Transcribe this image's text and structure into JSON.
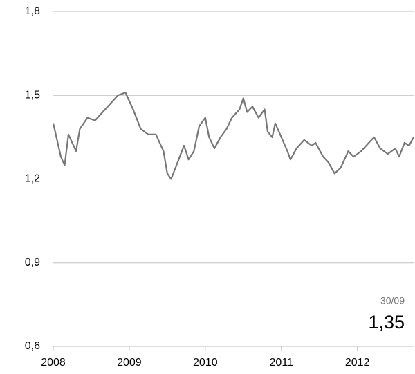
{
  "chart_data": {
    "type": "line",
    "x": [
      2008.0,
      2008.1,
      2008.15,
      2008.2,
      2008.3,
      2008.35,
      2008.45,
      2008.55,
      2008.65,
      2008.75,
      2008.85,
      2008.95,
      2009.05,
      2009.15,
      2009.25,
      2009.35,
      2009.45,
      2009.5,
      2009.55,
      2009.65,
      2009.72,
      2009.78,
      2009.85,
      2009.92,
      2010.0,
      2010.05,
      2010.12,
      2010.2,
      2010.28,
      2010.35,
      2010.45,
      2010.5,
      2010.55,
      2010.62,
      2010.7,
      2010.78,
      2010.82,
      2010.88,
      2010.92,
      2011.0,
      2011.08,
      2011.12,
      2011.2,
      2011.3,
      2011.4,
      2011.45,
      2011.55,
      2011.62,
      2011.7,
      2011.78,
      2011.88,
      2011.95,
      2012.05,
      2012.15,
      2012.22,
      2012.3,
      2012.4,
      2012.5,
      2012.55,
      2012.62,
      2012.68,
      2012.74
    ],
    "series": [
      {
        "color": "#777777",
        "values": [
          1.4,
          1.28,
          1.25,
          1.36,
          1.3,
          1.38,
          1.42,
          1.41,
          1.44,
          1.47,
          1.5,
          1.51,
          1.45,
          1.38,
          1.36,
          1.36,
          1.3,
          1.22,
          1.2,
          1.27,
          1.32,
          1.27,
          1.3,
          1.39,
          1.42,
          1.35,
          1.31,
          1.35,
          1.38,
          1.42,
          1.45,
          1.49,
          1.44,
          1.46,
          1.42,
          1.45,
          1.37,
          1.35,
          1.4,
          1.35,
          1.3,
          1.27,
          1.31,
          1.34,
          1.32,
          1.33,
          1.28,
          1.26,
          1.22,
          1.24,
          1.3,
          1.28,
          1.3,
          1.33,
          1.35,
          1.31,
          1.29,
          1.31,
          1.28,
          1.33,
          1.32,
          1.35
        ]
      }
    ],
    "xlim": [
      2008,
      2012.74
    ],
    "xticks": [
      2008,
      2009,
      2010,
      2011,
      2012
    ],
    "ylim": [
      0.6,
      1.8
    ],
    "yticks": [
      {
        "value": 0.6,
        "label": "0,6"
      },
      {
        "value": 0.9,
        "label": "0,9"
      },
      {
        "value": 1.2,
        "label": "1,2"
      },
      {
        "value": 1.5,
        "label": "1,5"
      },
      {
        "value": 1.8,
        "label": "1,8"
      }
    ],
    "grid": true,
    "end_label": {
      "date": "30/09",
      "value": 1.35,
      "label": "1,35"
    }
  }
}
